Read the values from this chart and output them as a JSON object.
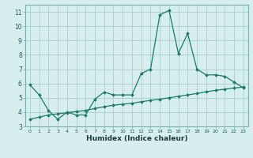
{
  "title": "",
  "xlabel": "Humidex (Indice chaleur)",
  "ylabel": "",
  "background_color": "#d6eeee",
  "grid_color": "#b0d0d0",
  "line_color": "#1a7a6a",
  "xlim": [
    -0.5,
    23.5
  ],
  "ylim": [
    3,
    11.5
  ],
  "xticks": [
    0,
    1,
    2,
    3,
    4,
    5,
    6,
    7,
    8,
    9,
    10,
    11,
    12,
    13,
    14,
    15,
    16,
    17,
    18,
    19,
    20,
    21,
    22,
    23
  ],
  "yticks": [
    3,
    4,
    5,
    6,
    7,
    8,
    9,
    10,
    11
  ],
  "series1_x": [
    0,
    1,
    2,
    3,
    4,
    5,
    6,
    7,
    8,
    9,
    10,
    11,
    12,
    13,
    14,
    15,
    16,
    17,
    18,
    19,
    20,
    21,
    22,
    23
  ],
  "series1_y": [
    5.9,
    5.2,
    4.1,
    3.5,
    4.0,
    3.8,
    3.8,
    4.9,
    5.4,
    5.2,
    5.2,
    5.2,
    6.7,
    7.0,
    10.8,
    11.1,
    8.1,
    9.5,
    7.0,
    6.6,
    6.6,
    6.5,
    6.1,
    5.7
  ],
  "series2_x": [
    0,
    1,
    2,
    3,
    4,
    5,
    6,
    7,
    8,
    9,
    10,
    11,
    12,
    13,
    14,
    15,
    16,
    17,
    18,
    19,
    20,
    21,
    22,
    23
  ],
  "series2_y": [
    3.5,
    3.65,
    3.8,
    3.88,
    3.96,
    4.04,
    4.12,
    4.25,
    4.38,
    4.48,
    4.55,
    4.62,
    4.72,
    4.82,
    4.9,
    5.0,
    5.1,
    5.2,
    5.3,
    5.42,
    5.52,
    5.6,
    5.68,
    5.75
  ]
}
